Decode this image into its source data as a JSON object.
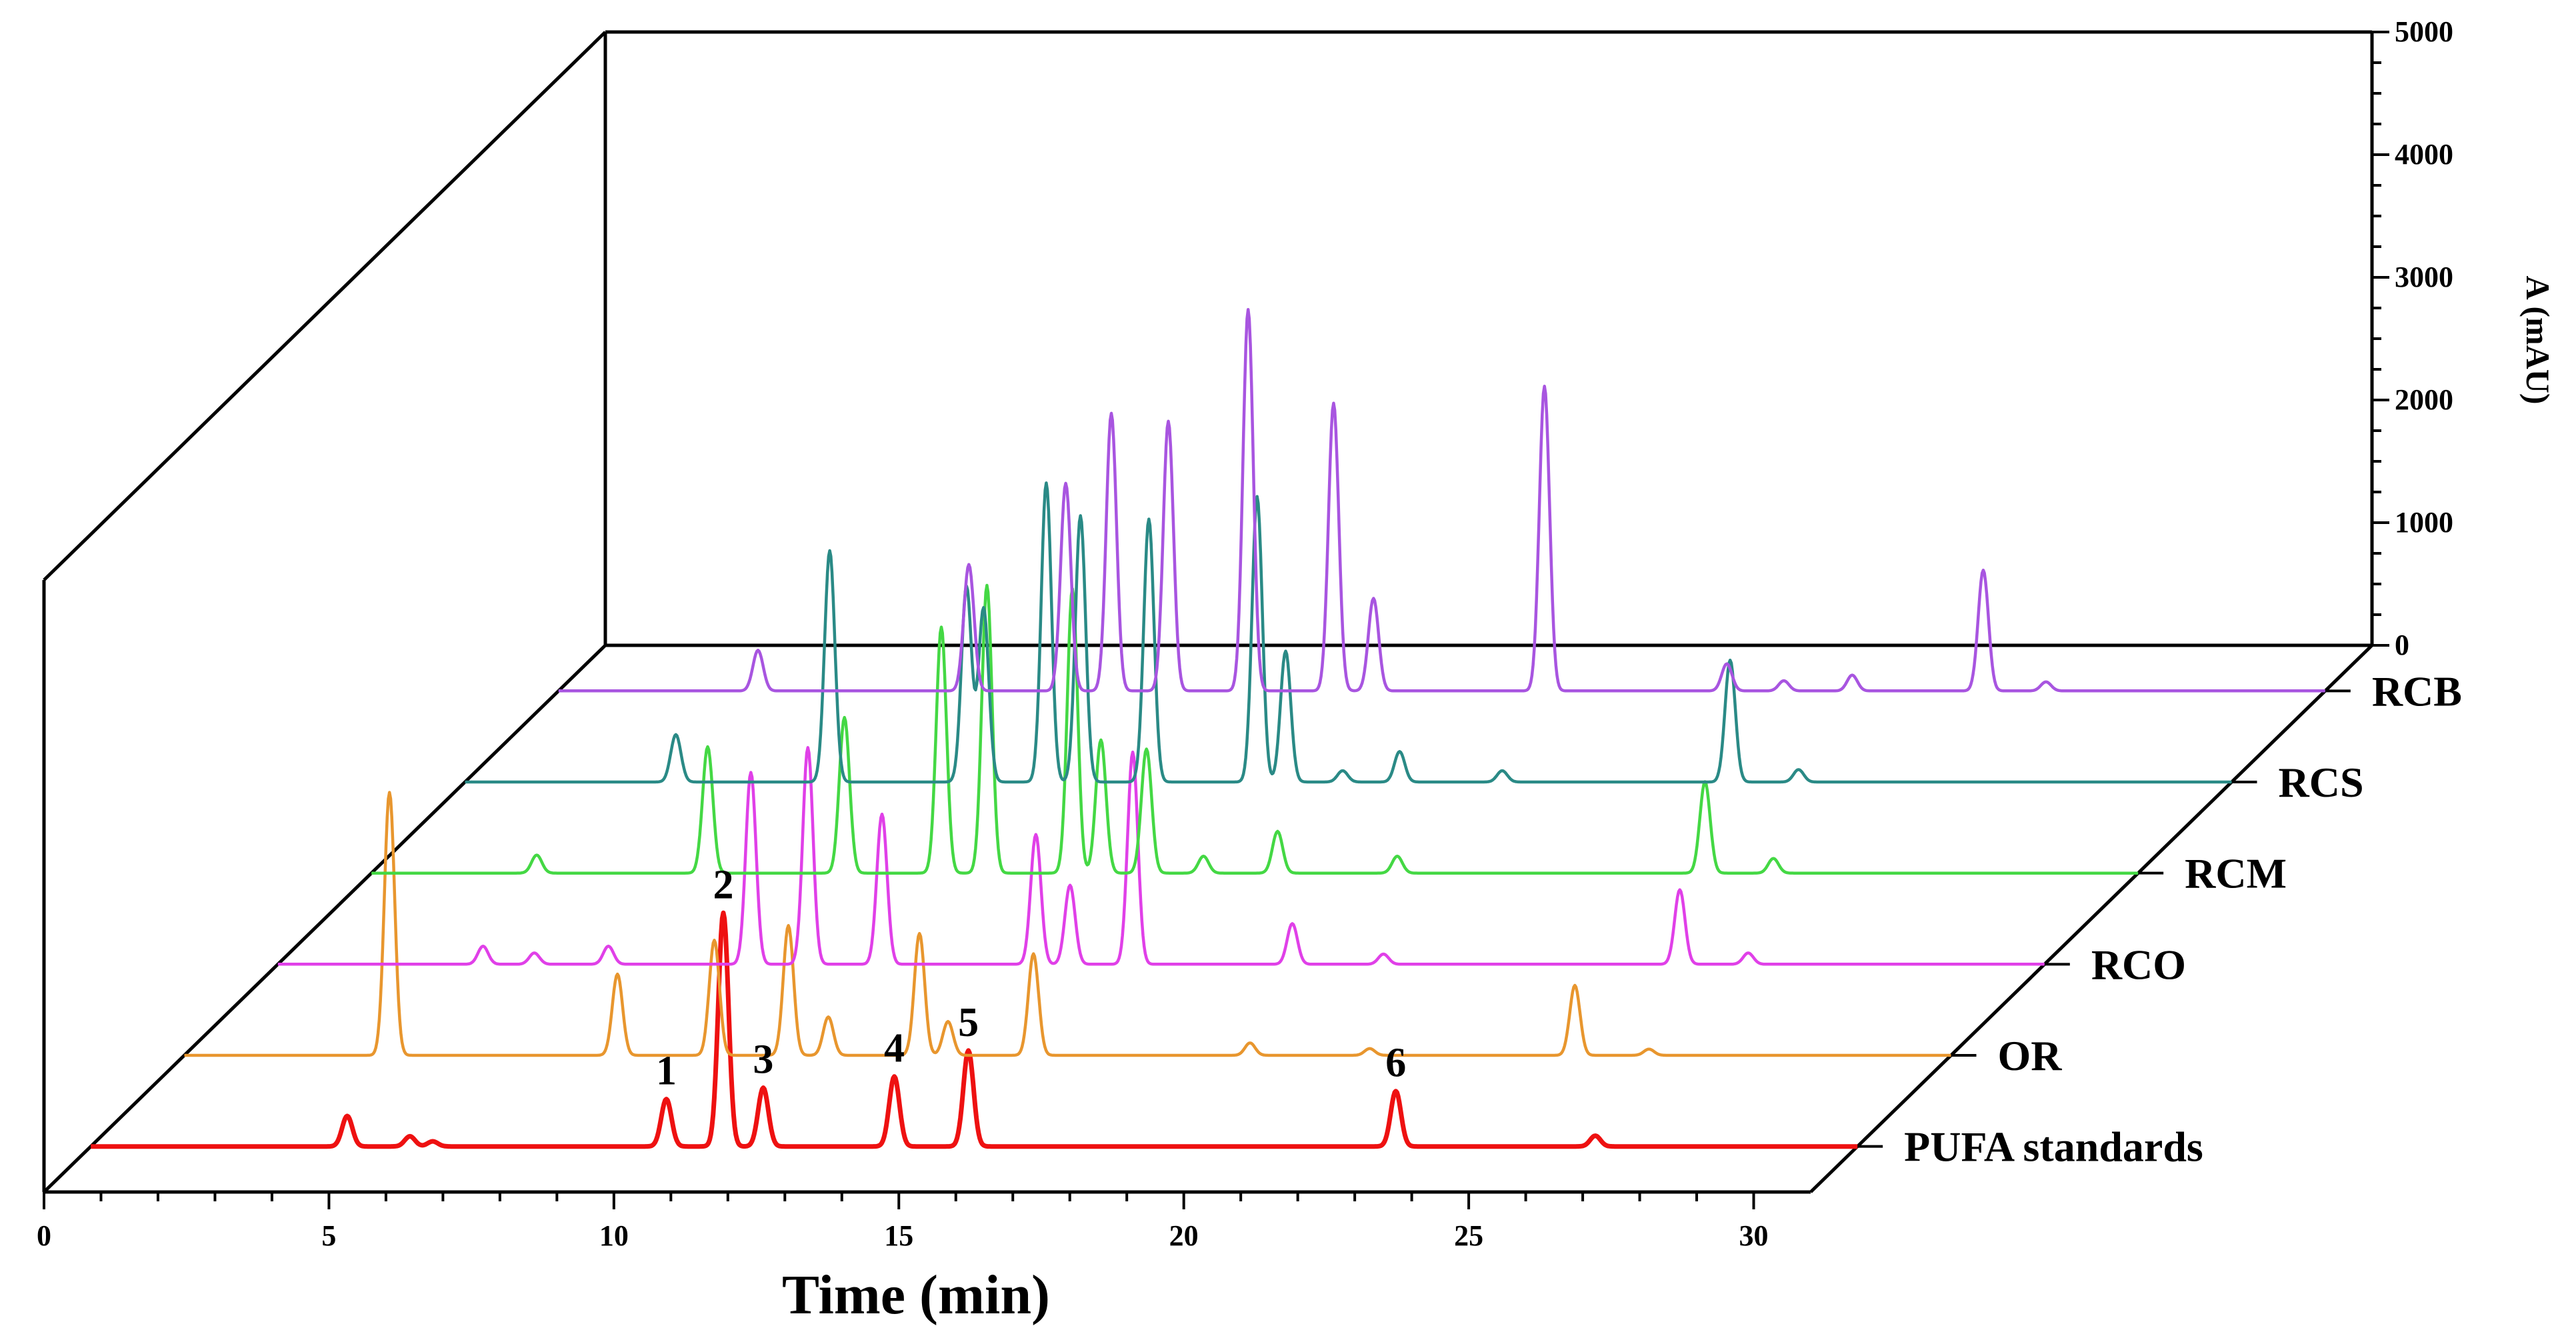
{
  "chart_data": {
    "type": "line",
    "title": "",
    "xlabel": "Time (min)",
    "ylabel": "A (mAU)",
    "xlim": [
      0,
      31
    ],
    "ylim": [
      0,
      5000
    ],
    "x_ticks": [
      0,
      5,
      10,
      15,
      20,
      25,
      30
    ],
    "y_ticks": [
      0,
      1000,
      2000,
      3000,
      4000,
      5000
    ],
    "series": [
      {
        "name": "PUFA standards",
        "color": "#ee1111",
        "peaks": [
          [
            4.5,
            270
          ],
          [
            5.6,
            90
          ],
          [
            6.0,
            45
          ],
          [
            10.1,
            420
          ],
          [
            11.1,
            2070
          ],
          [
            11.8,
            520
          ],
          [
            14.1,
            620
          ],
          [
            15.4,
            850
          ],
          [
            22.9,
            490
          ],
          [
            26.4,
            95
          ]
        ],
        "peak_labels": [
          {
            "label": "1",
            "time": 10.1
          },
          {
            "label": "2",
            "time": 11.1
          },
          {
            "label": "3",
            "time": 11.8
          },
          {
            "label": "4",
            "time": 14.1
          },
          {
            "label": "5",
            "time": 15.4
          },
          {
            "label": "6",
            "time": 22.9
          }
        ]
      },
      {
        "name": "OR",
        "color": "#e8962e",
        "peaks": [
          [
            3.6,
            2330
          ],
          [
            7.6,
            720
          ],
          [
            9.3,
            1020
          ],
          [
            10.6,
            1150
          ],
          [
            11.3,
            340
          ],
          [
            12.9,
            1080
          ],
          [
            13.4,
            300
          ],
          [
            14.9,
            900
          ],
          [
            18.7,
            110
          ],
          [
            20.8,
            60
          ],
          [
            24.4,
            620
          ],
          [
            25.7,
            55
          ]
        ]
      },
      {
        "name": "RCO",
        "color": "#e040e8",
        "peaks": [
          [
            3.6,
            160
          ],
          [
            4.5,
            100
          ],
          [
            5.8,
            160
          ],
          [
            8.3,
            1700
          ],
          [
            9.3,
            1920
          ],
          [
            10.6,
            1330
          ],
          [
            13.3,
            1150
          ],
          [
            13.9,
            700
          ],
          [
            15.0,
            1880
          ],
          [
            17.8,
            360
          ],
          [
            19.4,
            90
          ],
          [
            24.6,
            660
          ],
          [
            25.8,
            100
          ]
        ]
      },
      {
        "name": "RCM",
        "color": "#44d844",
        "peaks": [
          [
            2.9,
            160
          ],
          [
            5.9,
            1120
          ],
          [
            8.3,
            1380
          ],
          [
            10.0,
            2180
          ],
          [
            10.8,
            2550
          ],
          [
            12.3,
            2520
          ],
          [
            12.8,
            1180
          ],
          [
            13.6,
            1100
          ],
          [
            14.6,
            150
          ],
          [
            15.9,
            370
          ],
          [
            18.0,
            150
          ],
          [
            23.4,
            810
          ],
          [
            24.6,
            130
          ]
        ]
      },
      {
        "name": "RCS",
        "color": "#2a8a86",
        "peaks": [
          [
            3.7,
            420
          ],
          [
            6.4,
            2050
          ],
          [
            8.8,
            1730
          ],
          [
            9.1,
            1540
          ],
          [
            10.2,
            2650
          ],
          [
            10.8,
            2360
          ],
          [
            12.0,
            2330
          ],
          [
            13.9,
            2530
          ],
          [
            14.4,
            1160
          ],
          [
            15.4,
            100
          ],
          [
            16.4,
            270
          ],
          [
            18.2,
            100
          ],
          [
            22.2,
            1080
          ],
          [
            23.4,
            110
          ]
        ]
      },
      {
        "name": "RCB",
        "color": "#a855e0",
        "peaks": [
          [
            3.5,
            360
          ],
          [
            7.2,
            1120
          ],
          [
            8.9,
            1840
          ],
          [
            9.7,
            2460
          ],
          [
            10.7,
            2390
          ],
          [
            12.1,
            3380
          ],
          [
            13.6,
            2550
          ],
          [
            14.3,
            820
          ],
          [
            17.3,
            2700
          ],
          [
            20.5,
            240
          ],
          [
            21.5,
            90
          ],
          [
            22.7,
            140
          ],
          [
            25.0,
            1070
          ],
          [
            26.1,
            80
          ]
        ]
      }
    ]
  }
}
